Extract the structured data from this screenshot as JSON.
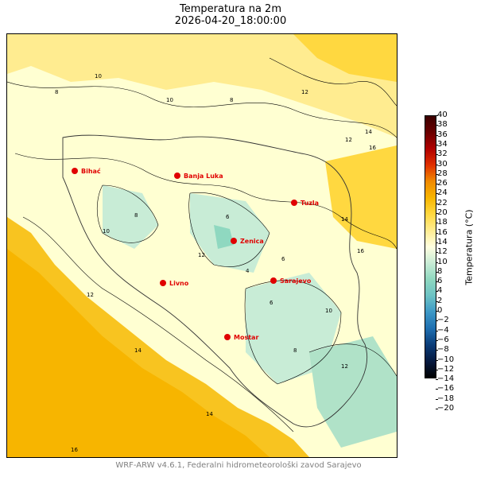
{
  "title": "Temperatura na 2m",
  "subtitle": "2026-04-20_18:00:00",
  "footer": "WRF-ARW v4.6.1, Federalni hidrometeorološki zavod Sarajevo",
  "colorbar": {
    "label": "Temperatura (°C)",
    "ticks": [
      "40",
      "38",
      "36",
      "34",
      "32",
      "30",
      "28",
      "26",
      "24",
      "22",
      "20",
      "18",
      "16",
      "14",
      "12",
      "10",
      "8",
      "6",
      "4",
      "2",
      "0",
      "−2",
      "−4",
      "−6",
      "−8",
      "−10",
      "−12",
      "−14",
      "−16",
      "−18",
      "−20"
    ],
    "range": [
      -20,
      40
    ],
    "colors": {
      "cold": "#000000",
      "cool": "#1f6fb0",
      "mild": "#8fd8c0",
      "neutral": "#ffffe0",
      "warm": "#ffe060",
      "warmer": "#f5b800",
      "hot": "#e03000",
      "hottest": "#3a0000"
    }
  },
  "cities": [
    {
      "name": "Bihać"
    },
    {
      "name": "Banja Luka"
    },
    {
      "name": "Tuzla"
    },
    {
      "name": "Zenica"
    },
    {
      "name": "Sarajevo"
    },
    {
      "name": "Livno"
    },
    {
      "name": "Mostar"
    }
  ],
  "contour_labels": [
    "8",
    "10",
    "12",
    "14",
    "16",
    "12",
    "10",
    "8",
    "6",
    "6",
    "12",
    "14",
    "16",
    "10",
    "8",
    "12",
    "14",
    "4",
    "6",
    "8",
    "10",
    "12",
    "14",
    "16"
  ],
  "map_colors": {
    "sea": "#f7b500",
    "coast": "#f8c420",
    "land_cool": "#c8ecd6",
    "land_mild": "#ffffd2",
    "land_warm": "#ffe680",
    "land_hot": "#ffd030"
  }
}
